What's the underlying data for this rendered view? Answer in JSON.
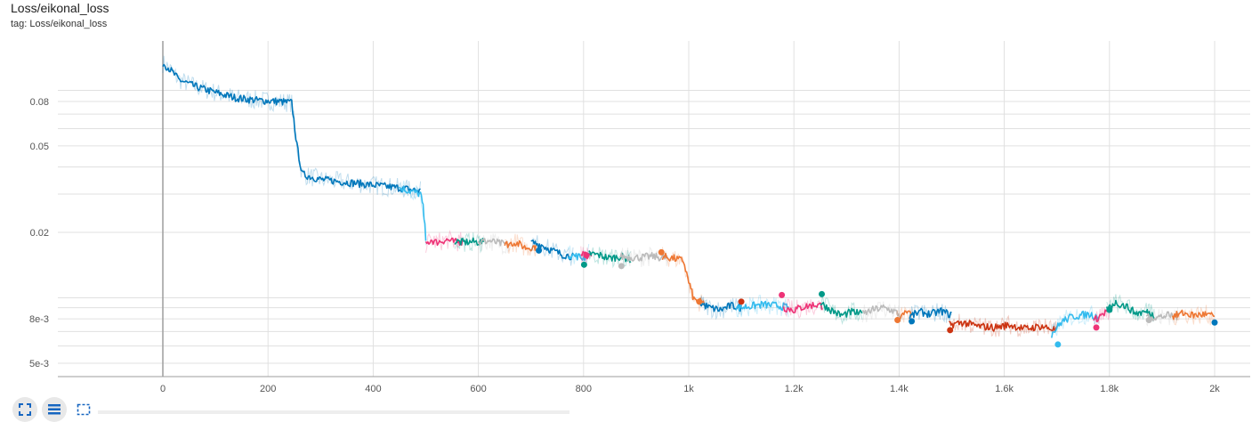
{
  "card": {
    "title": "Loss/eikonal_loss",
    "tag": "tag: Loss/eikonal_loss"
  },
  "toolbar": {
    "fullscreen_icon": "fullscreen-icon",
    "data_table_icon": "list-icon",
    "fit_domain_icon": "fit-domain-icon"
  },
  "colors": {
    "grid": "#e0e0e0",
    "axis": "#9e9e9e"
  },
  "chart_data": {
    "type": "line",
    "title": "",
    "xlabel": "",
    "ylabel": "",
    "xlim": [
      0,
      2060
    ],
    "ylim": [
      0.0045,
      0.125
    ],
    "yscale": "log",
    "grid": true,
    "x_ticks": [
      {
        "value": 0,
        "label": "0"
      },
      {
        "value": 200,
        "label": "200"
      },
      {
        "value": 400,
        "label": "400"
      },
      {
        "value": 600,
        "label": "600"
      },
      {
        "value": 800,
        "label": "800"
      },
      {
        "value": 1000,
        "label": "1k"
      },
      {
        "value": 1200,
        "label": "1.2k"
      },
      {
        "value": 1400,
        "label": "1.4k"
      },
      {
        "value": 1600,
        "label": "1.6k"
      },
      {
        "value": 1800,
        "label": "1.8k"
      },
      {
        "value": 2000,
        "label": "2k"
      }
    ],
    "y_ticks": [
      {
        "value": 0.08,
        "label": "0.08"
      },
      {
        "value": 0.05,
        "label": "0.05"
      },
      {
        "value": 0.02,
        "label": "0.02"
      },
      {
        "value": 0.008,
        "label": "8e-3"
      },
      {
        "value": 0.005,
        "label": "5e-3"
      }
    ],
    "y_minor_grid": [
      0.09,
      0.07,
      0.06,
      0.04,
      0.03,
      0.01,
      0.009,
      0.007,
      0.006
    ],
    "series": [
      {
        "color": "#0077bb",
        "x": [
          0,
          10,
          30,
          60,
          100,
          140,
          180,
          220,
          245,
          255,
          265,
          300,
          350,
          400,
          450,
          490
        ],
        "y": [
          0.12,
          0.115,
          0.101,
          0.094,
          0.088,
          0.083,
          0.081,
          0.08,
          0.079,
          0.05,
          0.037,
          0.035,
          0.034,
          0.033,
          0.032,
          0.031
        ]
      },
      {
        "color": "#33bbee",
        "x": [
          450,
          470,
          490,
          495,
          500
        ],
        "y": [
          0.032,
          0.031,
          0.03,
          0.026,
          0.019
        ]
      },
      {
        "color": "#ee3377",
        "x": [
          500,
          510,
          520,
          540,
          555,
          570
        ],
        "y": [
          0.0175,
          0.0185,
          0.018,
          0.0185,
          0.018,
          0.0182
        ]
      },
      {
        "color": "#009988",
        "x": [
          555,
          570,
          590,
          610
        ],
        "y": [
          0.0182,
          0.018,
          0.0181,
          0.018
        ]
      },
      {
        "color": "#bbbbbb",
        "x": [
          600,
          620,
          640,
          660
        ],
        "y": [
          0.018,
          0.0183,
          0.0178,
          0.0175
        ]
      },
      {
        "color": "#ee7733",
        "x": [
          650,
          670,
          690,
          710
        ],
        "y": [
          0.0175,
          0.018,
          0.017,
          0.0172
        ]
      },
      {
        "color": "#0077bb",
        "x": [
          700,
          720,
          740,
          760,
          780
        ],
        "y": [
          0.018,
          0.0175,
          0.0165,
          0.0158,
          0.0155
        ]
      },
      {
        "color": "#33bbee",
        "x": [
          770,
          790,
          800,
          810
        ],
        "y": [
          0.0158,
          0.0155,
          0.0152,
          0.016
        ]
      },
      {
        "color": "#ee3377",
        "x": [
          795,
          805,
          815
        ],
        "y": [
          0.0158,
          0.0156,
          0.016
        ]
      },
      {
        "color": "#009988",
        "x": [
          810,
          830,
          850,
          870,
          890
        ],
        "y": [
          0.016,
          0.0157,
          0.0152,
          0.0155,
          0.015
        ]
      },
      {
        "color": "#bbbbbb",
        "x": [
          870,
          900,
          930,
          960
        ],
        "y": [
          0.0155,
          0.0153,
          0.0155,
          0.0152
        ]
      },
      {
        "color": "#ee7733",
        "x": [
          950,
          970,
          990,
          1000,
          1010,
          1030
        ],
        "y": [
          0.0155,
          0.0152,
          0.0148,
          0.0118,
          0.0098,
          0.0094
        ]
      },
      {
        "color": "#0077bb",
        "x": [
          1020,
          1040,
          1060,
          1080,
          1100
        ],
        "y": [
          0.0095,
          0.009,
          0.0088,
          0.0092,
          0.009
        ]
      },
      {
        "color": "#33bbee",
        "x": [
          1090,
          1110,
          1140,
          1170,
          1190
        ],
        "y": [
          0.009,
          0.0091,
          0.0093,
          0.0092,
          0.009
        ]
      },
      {
        "color": "#ee3377",
        "x": [
          1180,
          1200,
          1220,
          1240,
          1255
        ],
        "y": [
          0.009,
          0.0088,
          0.0091,
          0.0093,
          0.0092
        ]
      },
      {
        "color": "#009988",
        "x": [
          1250,
          1270,
          1290,
          1310,
          1330
        ],
        "y": [
          0.0095,
          0.0088,
          0.0083,
          0.0086,
          0.0084
        ]
      },
      {
        "color": "#bbbbbb",
        "x": [
          1330,
          1350,
          1370,
          1390,
          1405
        ],
        "y": [
          0.0084,
          0.0088,
          0.009,
          0.0087,
          0.0082
        ]
      },
      {
        "color": "#ee7733",
        "x": [
          1395,
          1405,
          1415,
          1425
        ],
        "y": [
          0.008,
          0.0082,
          0.0086,
          0.0082
        ]
      },
      {
        "color": "#0077bb",
        "x": [
          1420,
          1440,
          1460,
          1480,
          1500
        ],
        "y": [
          0.0082,
          0.0086,
          0.0084,
          0.0087,
          0.0083
        ]
      },
      {
        "color": "#cc3311",
        "x": [
          1495,
          1520,
          1550,
          1580,
          1610,
          1640,
          1670,
          1700
        ],
        "y": [
          0.0075,
          0.0077,
          0.0074,
          0.0073,
          0.0075,
          0.0072,
          0.0074,
          0.0071
        ]
      },
      {
        "color": "#33bbee",
        "x": [
          1690,
          1710,
          1730,
          1760,
          1780
        ],
        "y": [
          0.0068,
          0.0078,
          0.0082,
          0.0084,
          0.0082
        ]
      },
      {
        "color": "#ee3377",
        "x": [
          1770,
          1780,
          1790,
          1800
        ],
        "y": [
          0.0078,
          0.0082,
          0.0085,
          0.0088
        ]
      },
      {
        "color": "#009988",
        "x": [
          1795,
          1810,
          1830,
          1850,
          1870,
          1885
        ],
        "y": [
          0.0088,
          0.0095,
          0.0092,
          0.0085,
          0.0086,
          0.0083
        ]
      },
      {
        "color": "#bbbbbb",
        "x": [
          1870,
          1890,
          1910,
          1930
        ],
        "y": [
          0.0083,
          0.0081,
          0.0083,
          0.0082
        ]
      },
      {
        "color": "#ee7733",
        "x": [
          1920,
          1940,
          1960,
          1980,
          2000
        ],
        "y": [
          0.0082,
          0.0085,
          0.0083,
          0.0084,
          0.0082
        ]
      }
    ],
    "end_markers": [
      {
        "color": "#ee3377",
        "x": 805,
        "y": 0.0157
      },
      {
        "color": "#009988",
        "x": 801,
        "y": 0.0142
      },
      {
        "color": "#0077bb",
        "x": 715,
        "y": 0.0165
      },
      {
        "color": "#bbbbbb",
        "x": 872,
        "y": 0.014
      },
      {
        "color": "#ee7733",
        "x": 948,
        "y": 0.0162
      },
      {
        "color": "#ee7733",
        "x": 1020,
        "y": 0.0096
      },
      {
        "color": "#cc3311",
        "x": 1100,
        "y": 0.0096
      },
      {
        "color": "#ee3377",
        "x": 1177,
        "y": 0.0103
      },
      {
        "color": "#009988",
        "x": 1253,
        "y": 0.0104
      },
      {
        "color": "#ee7733",
        "x": 1397,
        "y": 0.0079
      },
      {
        "color": "#0077bb",
        "x": 1424,
        "y": 0.0078
      },
      {
        "color": "#cc3311",
        "x": 1497,
        "y": 0.0071
      },
      {
        "color": "#33bbee",
        "x": 1702,
        "y": 0.0061
      },
      {
        "color": "#ee3377",
        "x": 1775,
        "y": 0.0073
      },
      {
        "color": "#009988",
        "x": 1800,
        "y": 0.0088
      },
      {
        "color": "#bbbbbb",
        "x": 1875,
        "y": 0.0079
      },
      {
        "color": "#0077bb",
        "x": 2000,
        "y": 0.0077
      }
    ]
  }
}
